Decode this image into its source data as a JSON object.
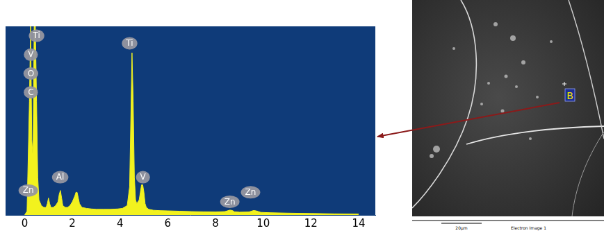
{
  "chart_data": {
    "type": "line",
    "x": [
      0,
      0.1,
      0.2,
      0.25,
      0.3,
      0.35,
      0.4,
      0.45,
      0.5,
      0.55,
      0.6,
      0.7,
      0.8,
      0.9,
      0.95,
      1.0,
      1.05,
      1.1,
      1.2,
      1.3,
      1.4,
      1.45,
      1.5,
      1.55,
      1.6,
      1.7,
      1.8,
      1.9,
      2.0,
      2.1,
      2.15,
      2.2,
      2.25,
      2.3,
      2.4,
      2.6,
      2.8,
      3.0,
      3.3,
      3.6,
      3.9,
      4.1,
      4.3,
      4.4,
      4.45,
      4.5,
      4.55,
      4.6,
      4.65,
      4.7,
      4.8,
      4.85,
      4.9,
      4.95,
      5.0,
      5.05,
      5.1,
      5.2,
      5.4,
      5.7,
      6.0,
      6.5,
      7.0,
      7.5,
      8.0,
      8.4,
      8.6,
      8.7,
      8.8,
      9.0,
      9.4,
      9.6,
      9.7,
      9.9,
      10.3,
      11,
      12,
      13,
      14
    ],
    "values": [
      0,
      2,
      60,
      100,
      40,
      30,
      100,
      100,
      60,
      20,
      8,
      5,
      4,
      4,
      6,
      9,
      6,
      4,
      4,
      5,
      7,
      11,
      13,
      9,
      5,
      4,
      4,
      5,
      7,
      10,
      12,
      12,
      9,
      6,
      4,
      3.5,
      3.2,
      3,
      3,
      3,
      3.2,
      3.5,
      5,
      15,
      50,
      86,
      60,
      20,
      8,
      6,
      8,
      12,
      16,
      16,
      12,
      6,
      4,
      3,
      2.5,
      2.3,
      2.2,
      2,
      1.8,
      1.7,
      1.6,
      1.8,
      2.6,
      2.4,
      1.7,
      1.5,
      1.6,
      2.4,
      2.2,
      1.4,
      1.2,
      1,
      0.8,
      0.6,
      0.5
    ],
    "color": "#f2f21e",
    "xlim": [
      -0.8,
      14.7
    ],
    "xticks": [
      0,
      2,
      4,
      6,
      8,
      10,
      12,
      14
    ],
    "ylim": [
      0,
      100
    ],
    "tick_labels": "x",
    "grid": false,
    "annotations": [
      {
        "text": "Ti",
        "x": 0.5,
        "y": 95
      },
      {
        "text": "V",
        "x": 0.26,
        "y": 85
      },
      {
        "text": "O",
        "x": 0.26,
        "y": 75
      },
      {
        "text": "C",
        "x": 0.26,
        "y": 65
      },
      {
        "text": "Al",
        "x": 1.49,
        "y": 20
      },
      {
        "text": "Zn",
        "x": 0.15,
        "y": 13
      },
      {
        "text": "Ti",
        "x": 4.4,
        "y": 91
      },
      {
        "text": "V",
        "x": 4.96,
        "y": 20
      },
      {
        "text": "Zn",
        "x": 8.6,
        "y": 7
      },
      {
        "text": "Zn",
        "x": 9.47,
        "y": 12
      }
    ]
  },
  "image_panel": {
    "label": "B",
    "scale_bar": "20µm",
    "caption": "Electron Image 1"
  }
}
